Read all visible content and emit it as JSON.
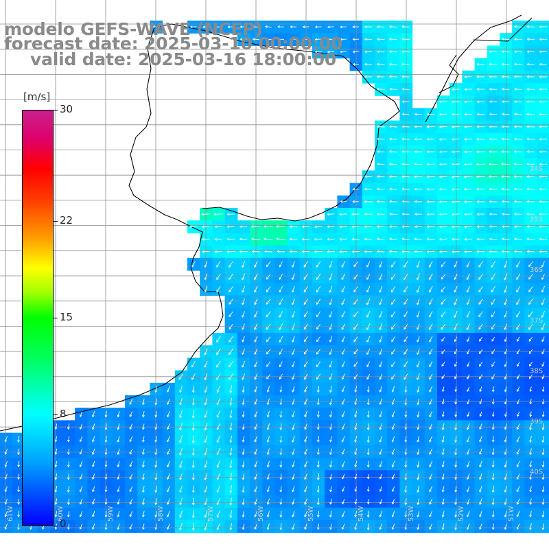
{
  "header": {
    "model": "modelo GEFS-WAVE (NCEP)",
    "forecast_date": "forecast date: 2025-03-10 00:00:00",
    "valid_date": "valid date: 2025-03-16 18:00:00"
  },
  "colorbar": {
    "unit": "[m/s]",
    "ticks": [
      {
        "label": "30",
        "value": 30
      },
      {
        "label": "22",
        "value": 22
      },
      {
        "label": "15",
        "value": 15
      },
      {
        "label": "8",
        "value": 8
      },
      {
        "label": "0",
        "value": 0
      }
    ],
    "min": 0,
    "max": 30
  },
  "map": {
    "lat_labels": [
      "34S",
      "35S",
      "36S",
      "37S",
      "38S",
      "39S",
      "40S"
    ],
    "lon_labels": [
      "61W",
      "60W",
      "59W",
      "58W",
      "57W",
      "56W",
      "55W",
      "54W",
      "53W",
      "52W",
      "51W",
      "50W"
    ],
    "colors": {
      "land": "#ffffff",
      "coast": "#000000",
      "grid": "#8c8c8c",
      "arrows": "#ffffff"
    }
  }
}
